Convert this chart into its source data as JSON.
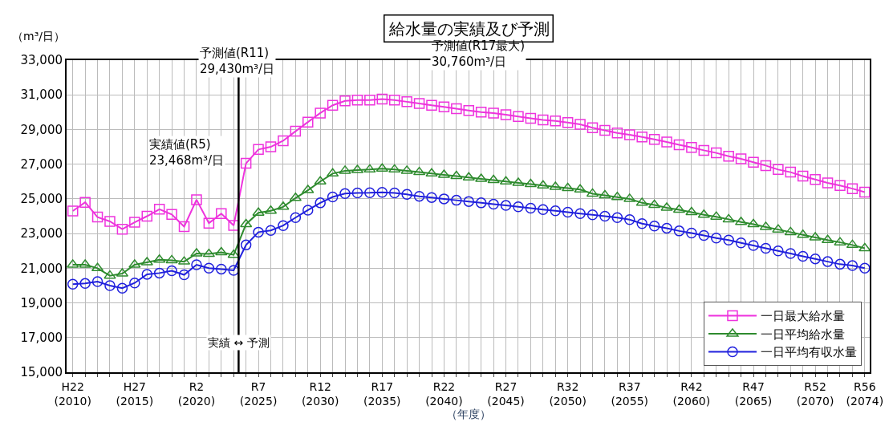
{
  "chart_data": {
    "type": "line",
    "title": "給水量の実績及び予測",
    "xlabel": "（年度）",
    "ylabel": "（m³/日）",
    "categories": [
      "H22\n(2010)",
      null,
      null,
      null,
      null,
      "H27\n(2015)",
      null,
      null,
      null,
      null,
      "R2\n(2020)",
      null,
      null,
      null,
      null,
      "R7\n(2025)",
      null,
      null,
      null,
      null,
      "R12\n(2030)",
      null,
      null,
      null,
      null,
      "R17\n(2035)",
      null,
      null,
      null,
      null,
      "R22\n(2040)",
      null,
      null,
      null,
      null,
      "R27\n(2045)",
      null,
      null,
      null,
      null,
      "R32\n(2050)",
      null,
      null,
      null,
      null,
      "R37\n(2055)",
      null,
      null,
      null,
      null,
      "R42\n(2060)",
      null,
      null,
      null,
      null,
      "R47\n(2065)",
      null,
      null,
      null,
      null,
      "R52\n(2070)",
      null,
      null,
      null,
      "R56\n(2074)"
    ],
    "series": [
      {
        "name": "一日最大給水量",
        "color": "#ee33dd",
        "marker": "square",
        "values": [
          24300,
          24800,
          23950,
          23700,
          23250,
          23650,
          24000,
          24400,
          24100,
          23400,
          24950,
          23600,
          24150,
          23468,
          27050,
          27850,
          28000,
          28350,
          28900,
          29430,
          29950,
          30400,
          30650,
          30700,
          30700,
          30760,
          30700,
          30600,
          30500,
          30400,
          30300,
          30200,
          30100,
          30000,
          29950,
          29850,
          29750,
          29650,
          29550,
          29500,
          29400,
          29300,
          29100,
          28950,
          28800,
          28700,
          28570,
          28430,
          28280,
          28120,
          27970,
          27800,
          27650,
          27460,
          27310,
          27110,
          26920,
          26690,
          26540,
          26310,
          26120,
          25920,
          25770,
          25590,
          25390
        ]
      },
      {
        "name": "一日平均給水量",
        "color": "#2e8b2e",
        "marker": "triangle",
        "values": [
          21200,
          21200,
          21000,
          20570,
          20690,
          21200,
          21340,
          21490,
          21460,
          21380,
          21850,
          21820,
          21920,
          21770,
          23540,
          24200,
          24310,
          24540,
          25050,
          25500,
          26000,
          26460,
          26620,
          26660,
          26690,
          26740,
          26690,
          26620,
          26540,
          26460,
          26380,
          26310,
          26230,
          26150,
          26080,
          26000,
          25920,
          25850,
          25770,
          25690,
          25620,
          25540,
          25300,
          25200,
          25100,
          25000,
          24770,
          24650,
          24490,
          24370,
          24230,
          24080,
          23970,
          23820,
          23660,
          23540,
          23380,
          23230,
          23080,
          22920,
          22770,
          22620,
          22490,
          22340,
          22150
        ]
      },
      {
        "name": "一日平均有収水量",
        "color": "#2020dd",
        "marker": "circle",
        "values": [
          20080,
          20120,
          20230,
          20000,
          19850,
          20150,
          20650,
          20720,
          20850,
          20620,
          21200,
          21000,
          20950,
          20880,
          22340,
          23080,
          23180,
          23460,
          23920,
          24350,
          24770,
          25110,
          25310,
          25340,
          25350,
          25380,
          25340,
          25260,
          25150,
          25080,
          25000,
          24920,
          24850,
          24770,
          24690,
          24620,
          24540,
          24460,
          24380,
          24310,
          24230,
          24150,
          24080,
          24000,
          23920,
          23800,
          23570,
          23430,
          23310,
          23150,
          23030,
          22890,
          22740,
          22620,
          22460,
          22310,
          22150,
          22000,
          21850,
          21690,
          21540,
          21380,
          21230,
          21150,
          21000
        ]
      }
    ],
    "ylim": [
      15000,
      33000
    ],
    "yticks": [
      {
        "value": 15000,
        "label": "15,000"
      },
      {
        "value": 17000,
        "label": "17,000"
      },
      {
        "value": 19000,
        "label": "19,000"
      },
      {
        "value": 21000,
        "label": "21,000"
      },
      {
        "value": 23000,
        "label": "23,000"
      },
      {
        "value": 25000,
        "label": "25,000"
      },
      {
        "value": 27000,
        "label": "27,000"
      },
      {
        "value": 29000,
        "label": "29,000"
      },
      {
        "value": 31000,
        "label": "31,000"
      },
      {
        "value": 33000,
        "label": "33,000"
      }
    ],
    "grid": true,
    "legend": "bottom right",
    "line_style": "solid",
    "annotations": [
      "実績値(R5)\n23,468m³/日",
      "予測値(R11)\n29,430m³/日",
      "予測値(R17最大)\n30,760m³/日",
      "実績 ↔ 予測"
    ]
  }
}
